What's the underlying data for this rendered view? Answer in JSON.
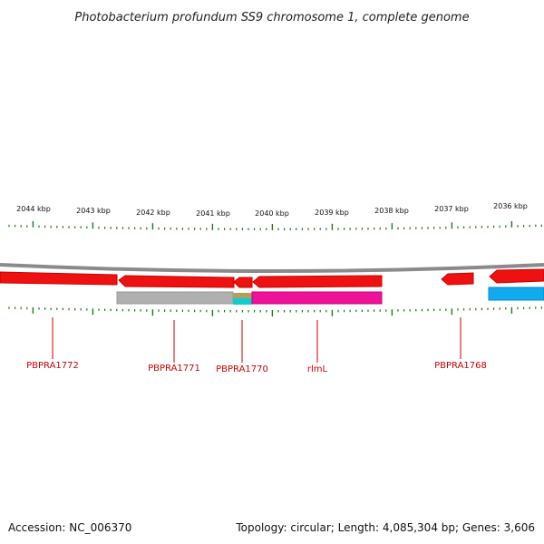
{
  "title": "Photobacterium profundum SS9 chromosome 1, complete genome",
  "footer": {
    "accession": "Accession: NC_006370",
    "summary": "Topology: circular; Length: 4,085,304 bp; Genes: 3,606"
  },
  "scale": {
    "labels": [
      "2044 kbp",
      "2043 kbp",
      "2042 kbp",
      "2041 kbp",
      "2040 kbp",
      "2039 kbp",
      "2038 kbp",
      "2037 kbp",
      "2036 kbp"
    ]
  },
  "genes": [
    {
      "label": "PBPRA1772",
      "color": "#ee1111"
    },
    {
      "label": "PBPRA1771",
      "color": "#ee1111"
    },
    {
      "label": "PBPRA1770",
      "color": "#ee1111"
    },
    {
      "label": "rlmL",
      "color": "#ee1111"
    },
    {
      "label": "PBPRA1768",
      "color": "#ee1111"
    }
  ],
  "features": {
    "backbone_color": "#8a8a8a",
    "tick_color": "#1a7a1a",
    "gray_block_color": "#b0b0b0",
    "magenta_block_color": "#ee1199",
    "cyan_block_color": "#11aaee",
    "olive_block_color": "#b0a060"
  }
}
